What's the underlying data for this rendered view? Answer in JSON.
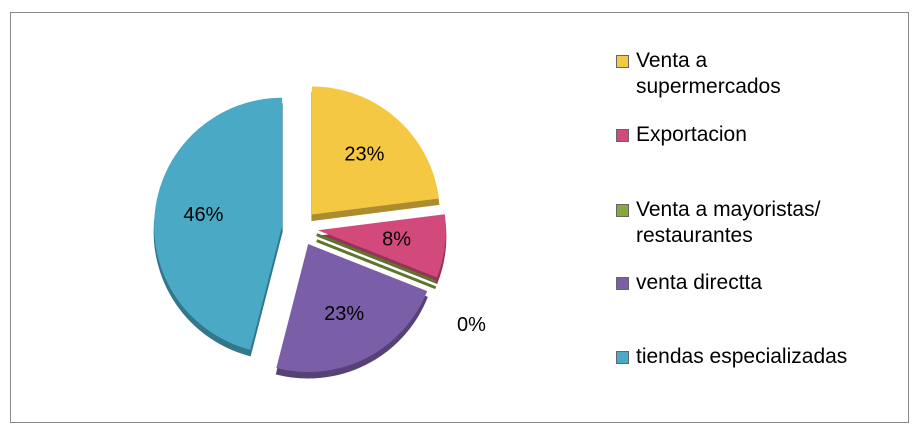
{
  "chart_data": {
    "type": "pie",
    "categories": [
      "Venta a supermercados",
      "Exportacion",
      "Venta a mayoristas/ restaurantes",
      "venta directta",
      "tiendas especializadas"
    ],
    "values": [
      23,
      8,
      0,
      23,
      46
    ],
    "value_labels": [
      "23%",
      "8%",
      "0%",
      "23%",
      "46%"
    ],
    "colors": [
      "#f5c843",
      "#d24a7c",
      "#86a93f",
      "#7b5ea8",
      "#4aaac6"
    ],
    "legend": "right"
  }
}
